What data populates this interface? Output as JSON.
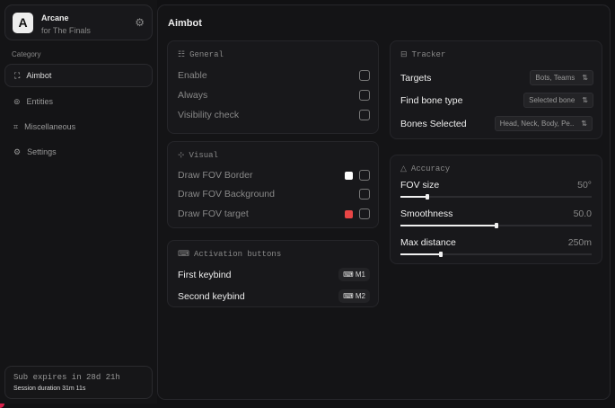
{
  "brand": {
    "logo": "A",
    "name": "Arcane",
    "subtitle": "for The Finals"
  },
  "sidebar": {
    "category_label": "Category",
    "items": [
      {
        "label": "Aimbot",
        "icon": "crosshair-icon",
        "active": true
      },
      {
        "label": "Entities",
        "icon": "scan-icon"
      },
      {
        "label": "Miscellaneous",
        "icon": "grid-icon"
      },
      {
        "label": "Settings",
        "icon": "gear-icon"
      }
    ]
  },
  "subscription": {
    "expires": "Sub expires in 28d 21h",
    "session": "Session duration 31m 11s"
  },
  "main": {
    "title": "Aimbot"
  },
  "general": {
    "title": "General",
    "rows": [
      {
        "label": "Enable"
      },
      {
        "label": "Always"
      },
      {
        "label": "Visibility check"
      }
    ]
  },
  "visual": {
    "title": "Visual",
    "rows": [
      {
        "label": "Draw FOV Border",
        "color": "#ffffff"
      },
      {
        "label": "Draw FOV Background"
      },
      {
        "label": "Draw FOV target",
        "color": "#e84545"
      }
    ]
  },
  "activation": {
    "title": "Activation buttons",
    "rows": [
      {
        "label": "First keybind",
        "key": "M1"
      },
      {
        "label": "Second keybind",
        "key": "M2"
      }
    ]
  },
  "tracker": {
    "title": "Tracker",
    "rows": [
      {
        "label": "Targets",
        "value": "Bots, Teams"
      },
      {
        "label": "Find bone type",
        "value": "Selected bone"
      },
      {
        "label": "Bones Selected",
        "value": "Head, Neck, Body, Pe.."
      }
    ]
  },
  "accuracy": {
    "title": "Accuracy",
    "sliders": [
      {
        "label": "FOV size",
        "value": "50°",
        "fraction": 0.14
      },
      {
        "label": "Smoothness",
        "value": "50.0",
        "fraction": 0.5
      },
      {
        "label": "Max distance",
        "value": "250m",
        "fraction": 0.21
      }
    ]
  }
}
